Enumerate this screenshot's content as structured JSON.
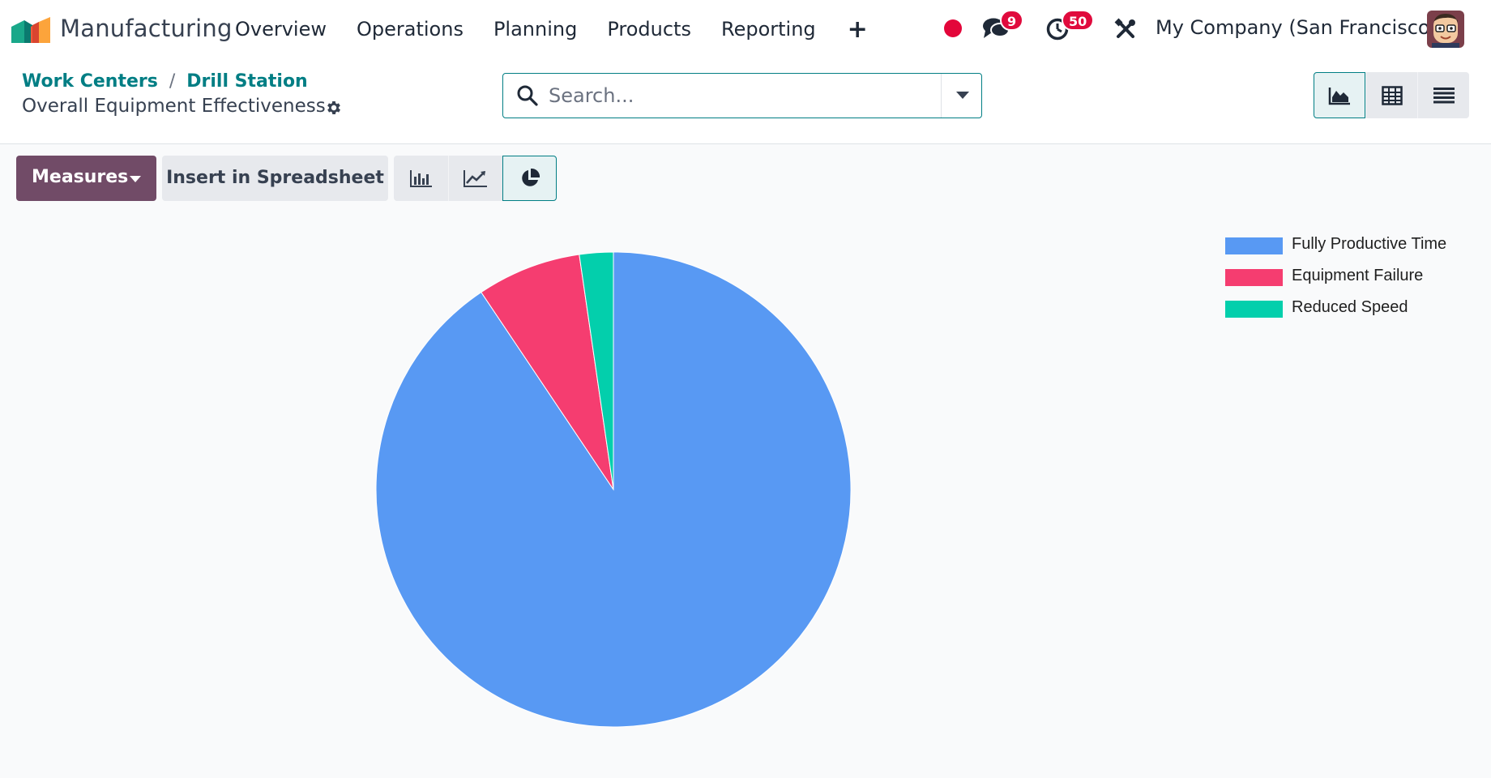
{
  "navbar": {
    "app_name": "Manufacturing",
    "menu": [
      "Overview",
      "Operations",
      "Planning",
      "Products",
      "Reporting"
    ],
    "plus_label": "+",
    "messages_count": "9",
    "activities_count": "50",
    "company": "My Company (San Francisco)"
  },
  "control_panel": {
    "breadcrumb": [
      "Work Centers",
      "Drill Station"
    ],
    "breadcrumb_separator": "/",
    "title": "Overall Equipment Effectiveness",
    "search_placeholder": "Search...",
    "views": [
      "graph",
      "pivot",
      "list"
    ],
    "active_view": "graph"
  },
  "toolbar": {
    "measures_label": "Measures",
    "spreadsheet_label": "Insert in Spreadsheet",
    "chart_types": [
      "bar",
      "line",
      "pie"
    ],
    "active_chart_type": "pie"
  },
  "chart_data": {
    "type": "pie",
    "categories": [
      "Fully Productive Time",
      "Equipment Failure",
      "Reduced Speed"
    ],
    "values": [
      90.6,
      7.1,
      2.3
    ],
    "colors": [
      "#5899f3",
      "#f53d70",
      "#03cfac"
    ],
    "legend_position": "top-right"
  },
  "colors": {
    "primary": "#714b67",
    "accent": "#017e84",
    "badge": "#e00b3d"
  }
}
